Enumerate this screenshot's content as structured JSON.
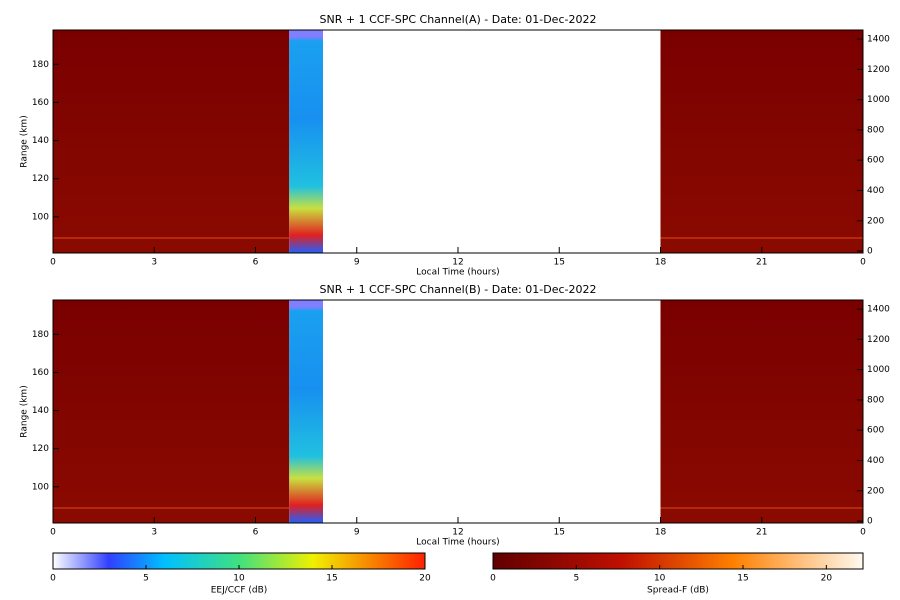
{
  "chart_data": [
    {
      "type": "heatmap",
      "title": "SNR + 1 CCF-SPC Channel(A) - Date: 01-Dec-2022",
      "xlabel": "Local Time (hours)",
      "ylabel": "Range (km)",
      "xlim": [
        0,
        24
      ],
      "xticks": [
        0,
        3,
        6,
        9,
        12,
        15,
        18,
        21,
        {
          "value": 24,
          "label": "0"
        }
      ],
      "ylim": [
        81,
        198
      ],
      "yticks": [
        100,
        120,
        140,
        160,
        180
      ],
      "y2lim": [
        -13,
        1460
      ],
      "y2ticks": [
        0,
        200,
        400,
        600,
        800,
        1000,
        1200,
        1400
      ],
      "blocks": [
        {
          "start": 0,
          "end": 7,
          "colormap": "spread-f"
        },
        {
          "start": 7,
          "end": 8,
          "colormap": "eej"
        },
        {
          "start": 18,
          "end": 24,
          "colormap": "spread-f"
        }
      ]
    },
    {
      "type": "heatmap",
      "title": "SNR + 1 CCF-SPC Channel(B) - Date: 01-Dec-2022",
      "xlabel": "Local Time (hours)",
      "ylabel": "Range (km)",
      "xlim": [
        0,
        24
      ],
      "xticks": [
        0,
        3,
        6,
        9,
        12,
        15,
        18,
        21,
        {
          "value": 24,
          "label": "0"
        }
      ],
      "ylim": [
        81,
        198
      ],
      "yticks": [
        100,
        120,
        140,
        160,
        180
      ],
      "y2lim": [
        -13,
        1460
      ],
      "y2ticks": [
        0,
        200,
        400,
        600,
        800,
        1000,
        1200,
        1400
      ],
      "blocks": [
        {
          "start": 0,
          "end": 7,
          "colormap": "spread-f"
        },
        {
          "start": 7,
          "end": 8,
          "colormap": "eej"
        },
        {
          "start": 18,
          "end": 24,
          "colormap": "spread-f"
        }
      ]
    }
  ],
  "colorbars": [
    {
      "label": "EEJ/CCF (dB)",
      "lim": [
        0,
        20
      ],
      "ticks": [
        0,
        5,
        10,
        15,
        20
      ],
      "colormap": "eej"
    },
    {
      "label": "Spread-F (dB)",
      "lim": [
        0,
        22.2
      ],
      "ticks": [
        0,
        5,
        10,
        15,
        20
      ],
      "colormap": "spread-f"
    }
  ]
}
